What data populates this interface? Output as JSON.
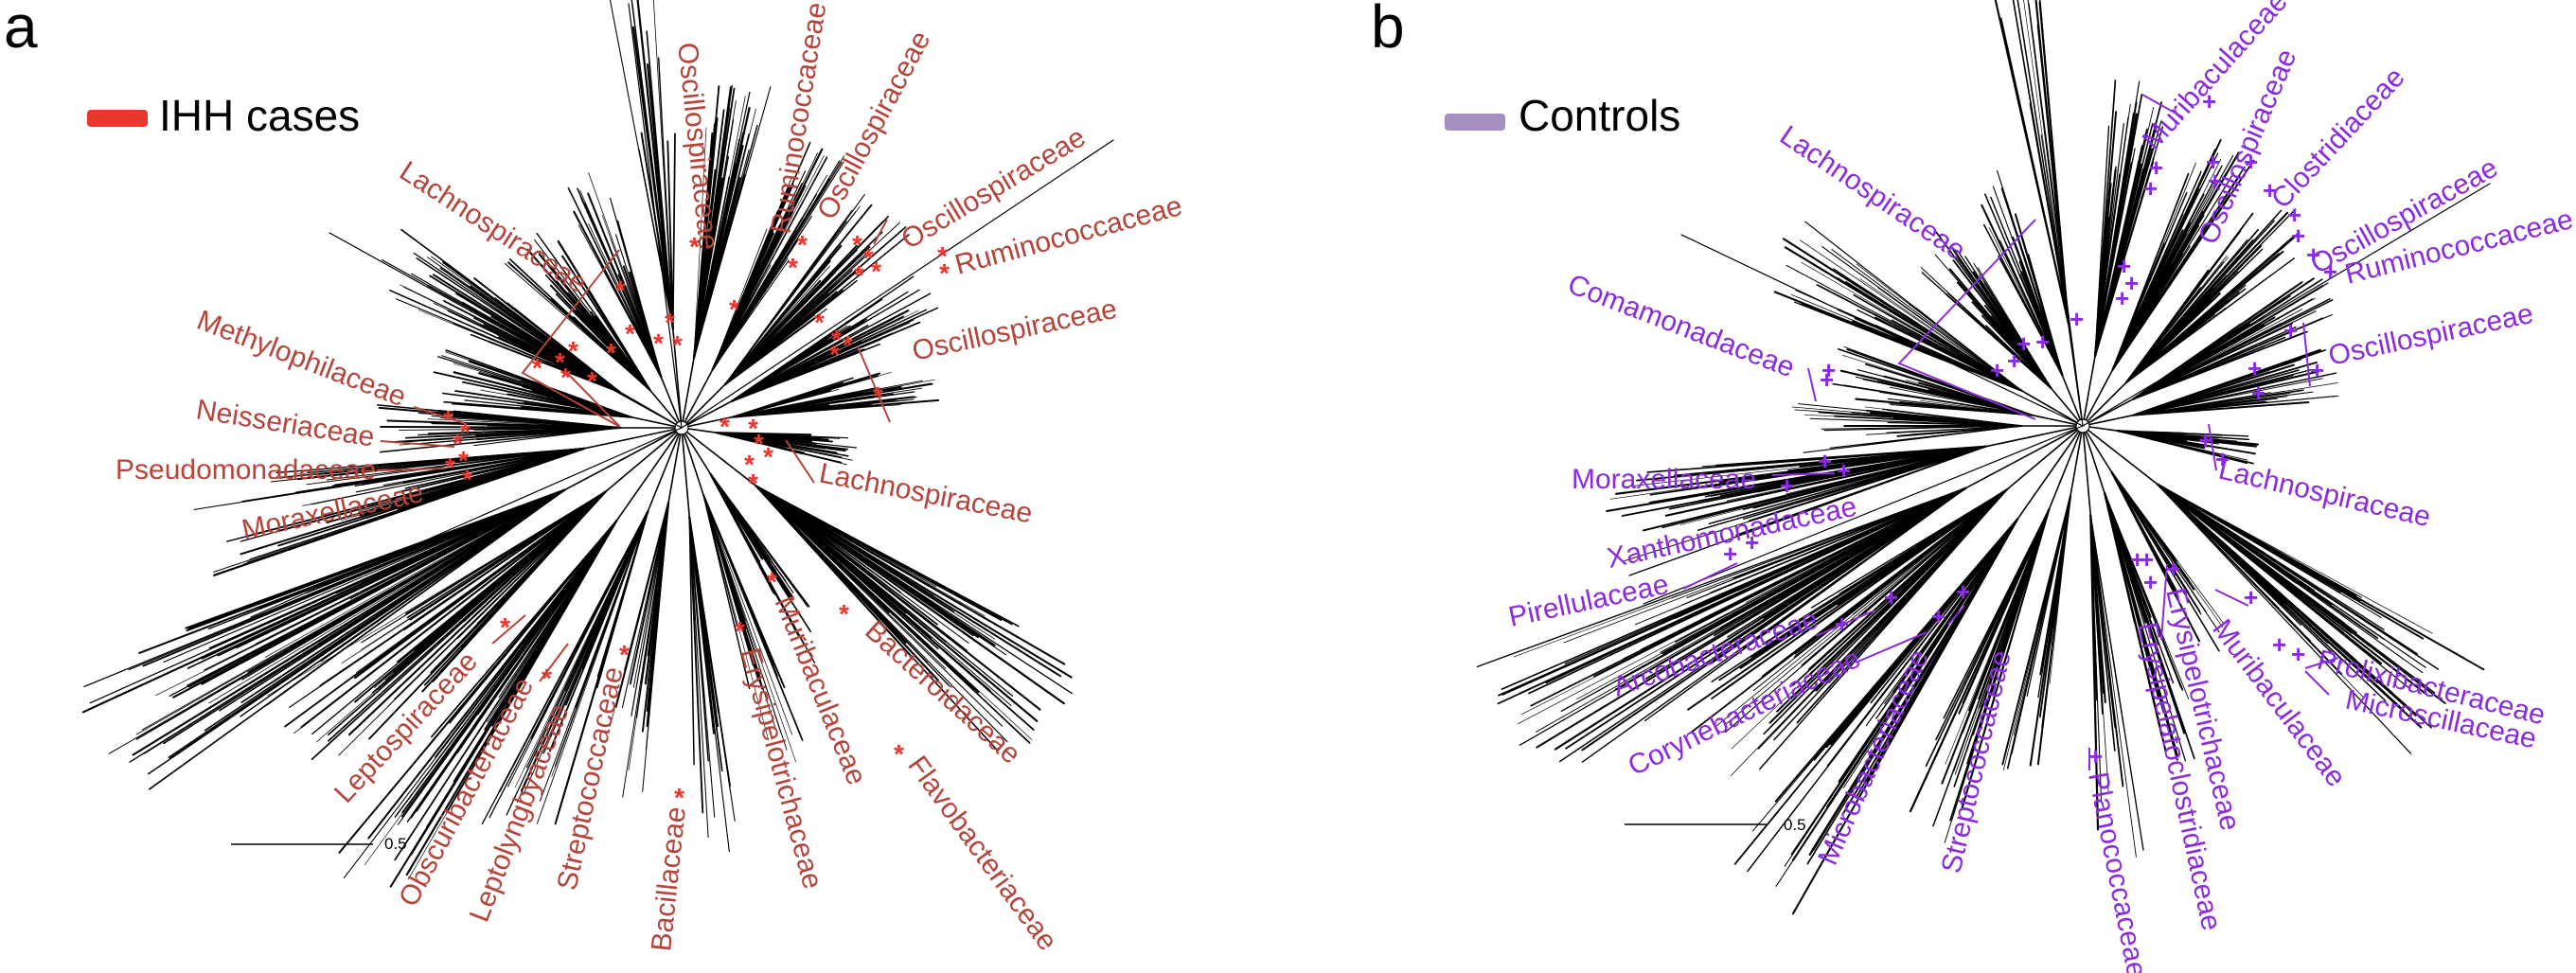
{
  "colors": {
    "cases": "#b5443b",
    "cases_marker": "#e8372e",
    "cases_legend": "#e8372e",
    "controls": "#8a2be2",
    "controls_legend": "#a48fc0",
    "tree": "#000000"
  },
  "panel_a": {
    "label": "a",
    "legend": "IHH cases",
    "marker": "*",
    "scale": "0.5",
    "families": [
      "Oscillospiraceae",
      "Ruminococcaceae",
      "Oscillospiraceae",
      "Oscillospiraceae",
      "Ruminococcaceae",
      "Lachnospiraceae",
      "Oscillospiraceae",
      "Methylophilaceae",
      "Neisseriaceae",
      "Pseudomonadaceae",
      "Moraxellaceae",
      "Lachnospiraceae",
      "Bacteroidaceae",
      "Muribaculaceae",
      "Flavobacteriaceae",
      "Erysipelotrichaceae",
      "Bacillaceae",
      "Streptococcaceae",
      "Leptolyngbyaceae",
      "Obscuribacteraceae",
      "Leptospiraceae"
    ]
  },
  "panel_b": {
    "label": "b",
    "legend": "Controls",
    "marker": "+",
    "scale": "0.5",
    "families": [
      "Muribaculaceae",
      "Oscillospiraceae",
      "Clostridiaceae",
      "Oscillospiraceae",
      "Ruminococcaceae",
      "Oscillospiraceae",
      "Lachnospiraceae",
      "Comamonadaceae",
      "Moraxellaceae",
      "Xanthomonadaceae",
      "Pirellulaceae",
      "Arcobacteraceae",
      "Corynebacteriaceae",
      "Lachnospiraceae",
      "Prolixibacteraceae",
      "Microscillaceae",
      "Muribaculaceae",
      "Erysipelotrichaceae",
      "Erysipelatoclostridiaceae",
      "Planococcaceae",
      "Streptococcaceae",
      "Microbacteriaceae"
    ]
  }
}
